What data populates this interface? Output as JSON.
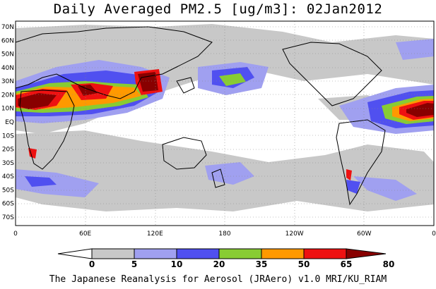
{
  "title": "Daily Averaged PM2.5 [ug/m3]: 02Jan2012",
  "footer": "The Japanese Reanalysis for Aerosol (JRAero) v1.0 MRI/KU_RIAM",
  "lat_labels": [
    "70N",
    "60N",
    "50N",
    "40N",
    "30N",
    "20N",
    "10N",
    "EQ",
    "10S",
    "20S",
    "30S",
    "40S",
    "50S",
    "60S",
    "70S"
  ],
  "lon_labels": [
    "0",
    "60E",
    "120E",
    "180",
    "120W",
    "60W",
    "0"
  ],
  "colorbar": {
    "thresholds": [
      "0",
      "5",
      "10",
      "20",
      "35",
      "50",
      "65",
      "80"
    ],
    "colors": [
      "#ffffff",
      "#c8c8c8",
      "#a0a0f0",
      "#5050f0",
      "#88cc33",
      "#ff9900",
      "#ee1111",
      "#880000"
    ]
  },
  "colors": {
    "land_outline": "#000000",
    "grid": "#888888"
  }
}
